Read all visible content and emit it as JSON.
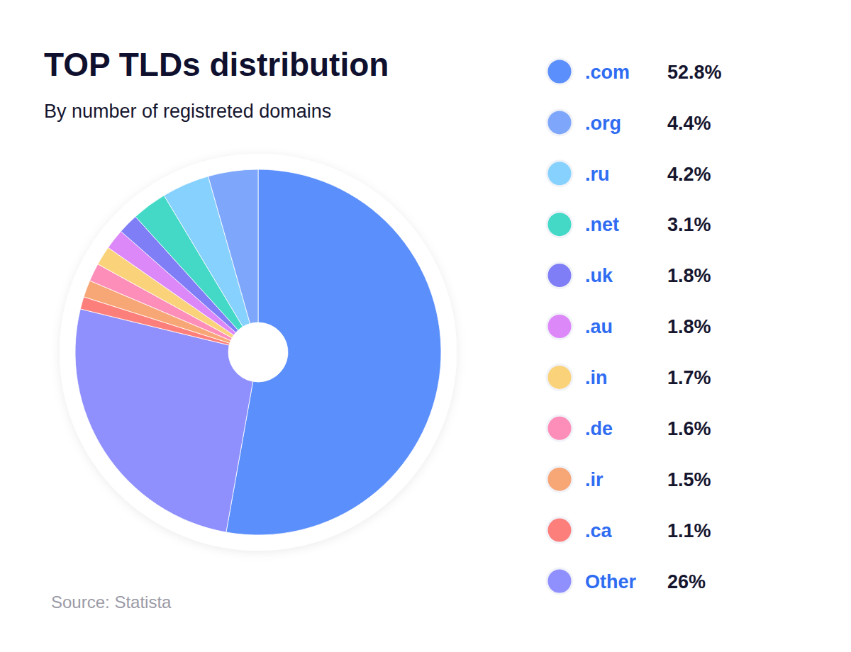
{
  "chart_data": {
    "type": "pie",
    "title": "TOP TLDs distribution",
    "subtitle": "By number of registreted domains",
    "source": "Source: Statista",
    "categories": [
      ".com",
      ".org",
      ".ru",
      ".net",
      ".uk",
      ".au",
      ".in",
      ".de",
      ".ir",
      ".ca",
      "Other"
    ],
    "values": [
      52.8,
      4.4,
      4.2,
      3.1,
      1.8,
      1.8,
      1.7,
      1.6,
      1.5,
      1.1,
      26
    ],
    "value_labels": [
      "52.8%",
      "4.4%",
      "4.2%",
      "3.1%",
      "1.8%",
      "1.8%",
      "1.7%",
      "1.6%",
      "1.5%",
      "1.1%",
      "26%"
    ],
    "colors": [
      "#5b8ffb",
      "#7ea7fb",
      "#86d1fd",
      "#43d9c6",
      "#7f7ef6",
      "#dd88f9",
      "#fad27a",
      "#fd8db9",
      "#f7a676",
      "#fd7f7b",
      "#8f8ffd"
    ],
    "legend": "right"
  }
}
